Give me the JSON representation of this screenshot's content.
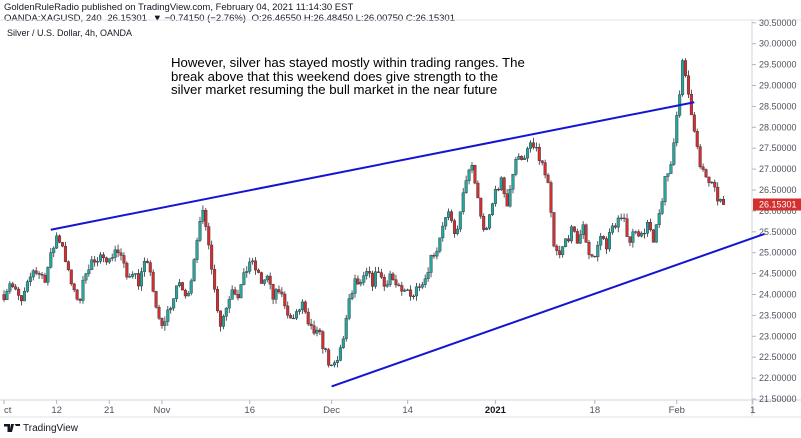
{
  "header": {
    "publisher_line": "GoldenRuleRadio published on TradingView.com, February 04, 2021 11:14:30 EST",
    "symbol": "OANDA:XAGUSD, 240",
    "last_price": "26.15301",
    "change": "▼ −0.74150 (−2.76%)",
    "ohlc": "O:26.46550 H:26.48450 L:26.00750 C:26.15301"
  },
  "chart_title": "Silver / U.S. Dollar, 4h, OANDA",
  "annotation": [
    "However, silver has stayed mostly within trading ranges.  The",
    "break above that this weekend does give strength to the",
    "silver market resuming the bull market in the near future"
  ],
  "footer": {
    "brand": "TradingView"
  },
  "colors": {
    "up": "#26a69a",
    "down": "#d32f2f",
    "candle_outline": "#2a2e39",
    "trendline": "#1414d2",
    "axis_text": "#50535e",
    "price_tag": "#d32f2f"
  },
  "chart_data": {
    "type": "candlestick",
    "title": "Silver / U.S. Dollar, 4h, OANDA",
    "interval": "4h",
    "ylim": [
      21.5,
      30.5
    ],
    "y_ticks": [
      "21.50000",
      "22.00000",
      "22.50000",
      "23.00000",
      "23.50000",
      "24.00000",
      "24.50000",
      "25.00000",
      "25.50000",
      "26.00000",
      "26.50000",
      "27.00000",
      "27.50000",
      "28.00000",
      "28.50000",
      "29.00000",
      "29.50000",
      "30.00000",
      "30.50000"
    ],
    "x_ticks": [
      {
        "label": "ct",
        "x": 0
      },
      {
        "label": "12",
        "x": 9
      },
      {
        "label": "21",
        "x": 18
      },
      {
        "label": "Nov",
        "x": 27
      },
      {
        "label": "16",
        "x": 42
      },
      {
        "label": "Dec",
        "x": 56
      },
      {
        "label": "14",
        "x": 69
      },
      {
        "label": "2021",
        "x": 84,
        "bold": true
      },
      {
        "label": "18",
        "x": 101
      },
      {
        "label": "Feb",
        "x": 115
      },
      {
        "label": "1",
        "x": 128
      }
    ],
    "last_price_label": "26.15301",
    "anchors": [
      [
        0,
        24.0
      ],
      [
        1,
        24.3
      ],
      [
        3,
        23.8
      ],
      [
        5,
        24.6
      ],
      [
        7,
        24.4
      ],
      [
        8,
        24.9
      ],
      [
        9,
        25.4
      ],
      [
        10,
        25.2
      ],
      [
        11,
        24.5
      ],
      [
        12,
        24.0
      ],
      [
        13,
        23.9
      ],
      [
        14,
        24.6
      ],
      [
        15,
        24.8
      ],
      [
        16,
        24.7
      ],
      [
        17,
        25.0
      ],
      [
        18,
        24.8
      ],
      [
        19,
        25.1
      ],
      [
        20,
        24.9
      ],
      [
        21,
        24.4
      ],
      [
        22,
        24.6
      ],
      [
        23,
        24.3
      ],
      [
        24,
        24.7
      ],
      [
        25,
        24.6
      ],
      [
        26,
        23.6
      ],
      [
        27,
        23.2
      ],
      [
        28,
        23.6
      ],
      [
        29,
        23.9
      ],
      [
        30,
        24.3
      ],
      [
        31,
        23.9
      ],
      [
        32,
        24.4
      ],
      [
        33,
        25.4
      ],
      [
        34,
        25.9
      ],
      [
        35,
        25.3
      ],
      [
        36,
        24.1
      ],
      [
        37,
        23.3
      ],
      [
        38,
        23.7
      ],
      [
        39,
        24.2
      ],
      [
        40,
        24.0
      ],
      [
        41,
        24.4
      ],
      [
        42,
        24.8
      ],
      [
        43,
        24.6
      ],
      [
        44,
        24.3
      ],
      [
        45,
        24.4
      ],
      [
        46,
        23.9
      ],
      [
        47,
        24.1
      ],
      [
        48,
        23.8
      ],
      [
        49,
        23.4
      ],
      [
        50,
        23.5
      ],
      [
        51,
        23.8
      ],
      [
        52,
        23.2
      ],
      [
        53,
        23.1
      ],
      [
        54,
        23.0
      ],
      [
        55,
        22.6
      ],
      [
        56,
        22.2
      ],
      [
        57,
        22.4
      ],
      [
        58,
        23.0
      ],
      [
        59,
        23.8
      ],
      [
        60,
        24.3
      ],
      [
        61,
        24.2
      ],
      [
        62,
        24.5
      ],
      [
        63,
        24.3
      ],
      [
        64,
        24.6
      ],
      [
        65,
        24.2
      ],
      [
        66,
        24.5
      ],
      [
        67,
        24.2
      ],
      [
        68,
        24.0
      ],
      [
        69,
        24.1
      ],
      [
        70,
        24.0
      ],
      [
        71,
        24.3
      ],
      [
        72,
        24.4
      ],
      [
        73,
        24.9
      ],
      [
        74,
        25.1
      ],
      [
        75,
        25.7
      ],
      [
        76,
        25.9
      ],
      [
        77,
        25.4
      ],
      [
        78,
        25.9
      ],
      [
        79,
        26.8
      ],
      [
        80,
        27.0
      ],
      [
        81,
        26.3
      ],
      [
        82,
        25.5
      ],
      [
        83,
        25.8
      ],
      [
        84,
        26.5
      ],
      [
        85,
        26.7
      ],
      [
        86,
        26.2
      ],
      [
        87,
        26.9
      ],
      [
        88,
        27.4
      ],
      [
        89,
        27.2
      ],
      [
        90,
        27.6
      ],
      [
        91,
        27.4
      ],
      [
        92,
        27.1
      ],
      [
        93,
        26.6
      ],
      [
        94,
        25.1
      ],
      [
        95,
        24.9
      ],
      [
        96,
        25.3
      ],
      [
        97,
        25.5
      ],
      [
        98,
        25.3
      ],
      [
        99,
        25.6
      ],
      [
        100,
        25.0
      ],
      [
        101,
        24.9
      ],
      [
        102,
        25.4
      ],
      [
        103,
        25.2
      ],
      [
        104,
        25.6
      ],
      [
        105,
        25.8
      ],
      [
        106,
        25.7
      ],
      [
        107,
        25.3
      ],
      [
        108,
        25.6
      ],
      [
        109,
        25.4
      ],
      [
        110,
        25.7
      ],
      [
        111,
        25.2
      ],
      [
        112,
        25.9
      ],
      [
        113,
        26.7
      ],
      [
        114,
        27.1
      ],
      [
        115,
        28.3
      ],
      [
        116,
        29.5
      ],
      [
        117,
        28.8
      ],
      [
        118,
        28.0
      ],
      [
        119,
        27.0
      ],
      [
        120,
        26.8
      ],
      [
        121,
        26.6
      ],
      [
        122,
        26.3
      ],
      [
        123,
        26.15
      ]
    ],
    "trendlines": [
      {
        "name": "upper-resistance",
        "from": [
          8,
          25.55
        ],
        "to": [
          118,
          28.6
        ]
      },
      {
        "name": "lower-support",
        "from": [
          56,
          21.8
        ],
        "to": [
          130,
          25.45
        ]
      }
    ],
    "grid": false,
    "legend": "none"
  }
}
